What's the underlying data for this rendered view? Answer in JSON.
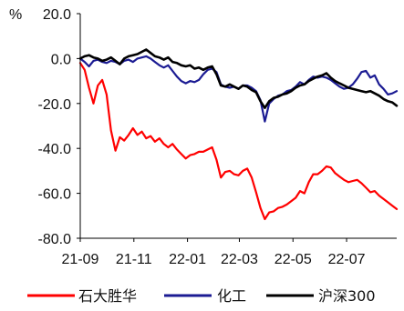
{
  "chart_data": {
    "type": "line",
    "ylabel": "%",
    "ylim": [
      -80,
      20
    ],
    "yticks": [
      20,
      0,
      -20,
      -40,
      -60,
      -80
    ],
    "ytick_labels": [
      "20.0",
      "0.0",
      "-20.0",
      "-40.0",
      "-60.0",
      "-80.0"
    ],
    "xlim": [
      "2021-09-01",
      "2022-08-27"
    ],
    "xticks": [
      {
        "date": "2021-09-01",
        "label": "21-09"
      },
      {
        "date": "2021-11-01",
        "label": "21-11"
      },
      {
        "date": "2022-01-01",
        "label": "22-01"
      },
      {
        "date": "2022-03-01",
        "label": "22-03"
      },
      {
        "date": "2022-05-01",
        "label": "22-05"
      },
      {
        "date": "2022-07-01",
        "label": "22-07"
      }
    ],
    "grid": false,
    "legend": "bottom",
    "x": [
      "2021-09-01",
      "2021-09-06",
      "2021-09-11",
      "2021-09-16",
      "2021-09-21",
      "2021-09-26",
      "2021-10-01",
      "2021-10-06",
      "2021-10-11",
      "2021-10-16",
      "2021-10-21",
      "2021-10-26",
      "2021-10-31",
      "2021-11-05",
      "2021-11-10",
      "2021-11-15",
      "2021-11-20",
      "2021-11-25",
      "2021-11-30",
      "2021-12-05",
      "2021-12-10",
      "2021-12-15",
      "2021-12-20",
      "2021-12-25",
      "2021-12-30",
      "2022-01-04",
      "2022-01-09",
      "2022-01-14",
      "2022-01-19",
      "2022-01-24",
      "2022-01-29",
      "2022-02-03",
      "2022-02-08",
      "2022-02-13",
      "2022-02-18",
      "2022-02-23",
      "2022-02-28",
      "2022-03-05",
      "2022-03-10",
      "2022-03-15",
      "2022-03-20",
      "2022-03-25",
      "2022-03-30",
      "2022-04-04",
      "2022-04-09",
      "2022-04-14",
      "2022-04-19",
      "2022-04-24",
      "2022-04-29",
      "2022-05-04",
      "2022-05-09",
      "2022-05-14",
      "2022-05-19",
      "2022-05-24",
      "2022-05-29",
      "2022-06-03",
      "2022-06-08",
      "2022-06-13",
      "2022-06-18",
      "2022-06-23",
      "2022-06-28",
      "2022-07-03",
      "2022-07-08",
      "2022-07-13",
      "2022-07-18",
      "2022-07-23",
      "2022-07-28",
      "2022-08-02",
      "2022-08-07",
      "2022-08-12",
      "2022-08-17",
      "2022-08-22",
      "2022-08-27"
    ],
    "series": [
      {
        "name": "石大胜华",
        "color": "#ff0000",
        "values": [
          -2.0,
          -5.0,
          -13.0,
          -20.0,
          -12.0,
          -9.5,
          -16.0,
          -32.0,
          -41.0,
          -35.0,
          -36.5,
          -34.0,
          -31.0,
          -34.0,
          -32.5,
          -35.5,
          -34.5,
          -37.0,
          -35.5,
          -38.0,
          -39.5,
          -38.0,
          -40.5,
          -42.5,
          -44.5,
          -43.0,
          -42.5,
          -41.5,
          -41.5,
          -40.5,
          -39.5,
          -45.0,
          -53.0,
          -50.5,
          -50.0,
          -51.5,
          -52.0,
          -50.0,
          -49.0,
          -53.0,
          -59.5,
          -66.5,
          -71.5,
          -68.5,
          -68.0,
          -66.5,
          -66.0,
          -65.0,
          -63.5,
          -62.0,
          -59.0,
          -60.0,
          -55.0,
          -51.5,
          -51.5,
          -50.0,
          -48.0,
          -48.5,
          -51.0,
          -52.5,
          -54.0,
          -55.0,
          -54.5,
          -54.0,
          -55.5,
          -57.5,
          -59.5,
          -59.0,
          -61.0,
          -62.5,
          -64.0,
          -65.5,
          -67.0
        ]
      },
      {
        "name": "化工",
        "color": "#1b1b93",
        "values": [
          0.0,
          -1.5,
          -3.5,
          -1.0,
          -0.5,
          -1.5,
          -2.0,
          -1.0,
          -1.5,
          -2.5,
          -1.0,
          -0.5,
          -1.5,
          0.0,
          0.5,
          1.0,
          0.0,
          -1.5,
          -3.0,
          -4.0,
          -3.0,
          -5.5,
          -8.0,
          -10.0,
          -11.0,
          -10.0,
          -10.5,
          -9.5,
          -7.0,
          -5.0,
          -4.5,
          -6.0,
          -11.5,
          -12.5,
          -13.0,
          -12.5,
          -13.5,
          -12.0,
          -12.0,
          -13.0,
          -14.5,
          -18.5,
          -28.0,
          -20.0,
          -18.0,
          -16.5,
          -16.0,
          -14.5,
          -14.0,
          -12.5,
          -10.5,
          -11.5,
          -9.5,
          -8.0,
          -8.5,
          -8.0,
          -8.5,
          -9.5,
          -11.0,
          -12.5,
          -13.5,
          -13.0,
          -11.5,
          -9.0,
          -6.0,
          -5.5,
          -8.5,
          -7.5,
          -11.5,
          -13.5,
          -16.0,
          -15.5,
          -14.5
        ]
      },
      {
        "name": "沪深300",
        "color": "#000000",
        "values": [
          0.0,
          1.0,
          1.5,
          0.5,
          0.0,
          -1.0,
          -0.5,
          0.5,
          -1.0,
          -2.5,
          0.0,
          1.0,
          1.5,
          2.0,
          3.0,
          4.0,
          2.5,
          1.0,
          0.5,
          -0.5,
          0.5,
          -1.5,
          -2.0,
          -3.0,
          -3.5,
          -3.0,
          -4.5,
          -4.0,
          -5.0,
          -4.0,
          -3.5,
          -7.0,
          -12.0,
          -12.5,
          -11.5,
          -12.5,
          -13.5,
          -12.0,
          -12.5,
          -14.0,
          -15.0,
          -19.0,
          -22.0,
          -19.0,
          -17.5,
          -17.0,
          -16.0,
          -15.5,
          -14.5,
          -13.0,
          -12.0,
          -11.5,
          -10.0,
          -9.0,
          -8.0,
          -7.5,
          -6.5,
          -8.5,
          -10.0,
          -11.0,
          -12.0,
          -13.0,
          -13.5,
          -14.0,
          -14.5,
          -15.0,
          -14.5,
          -15.5,
          -16.5,
          -18.0,
          -19.0,
          -19.5,
          -21.0
        ]
      }
    ]
  }
}
